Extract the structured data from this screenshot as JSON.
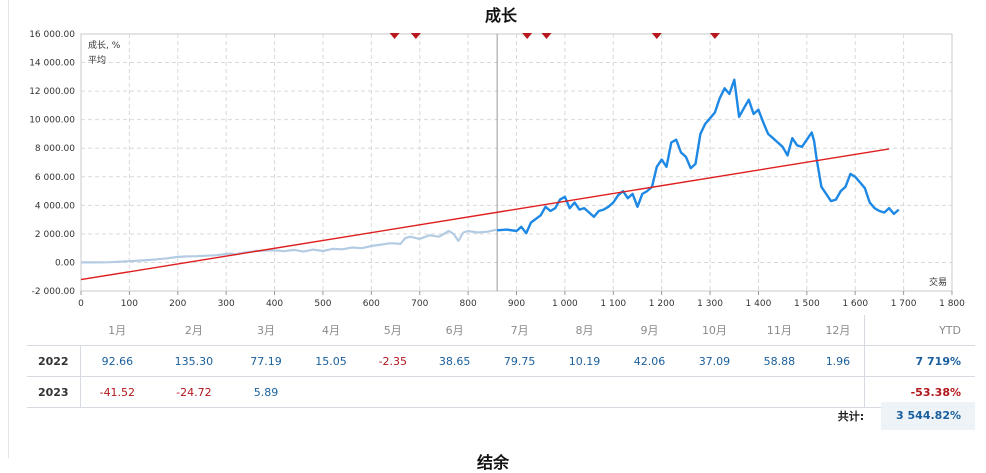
{
  "chart_data": {
    "type": "line",
    "title": "成长",
    "legend": [
      "成长, %",
      "平均"
    ],
    "legend_position": "top-left",
    "xlabel": "交易",
    "xlim": [
      0,
      1800
    ],
    "ylim": [
      -2000,
      16000
    ],
    "x_ticks": [
      0,
      100,
      200,
      300,
      400,
      500,
      600,
      700,
      800,
      900,
      1000,
      1100,
      1200,
      1300,
      1400,
      1500,
      1600,
      1700,
      1800
    ],
    "x_tick_labels": [
      "0",
      "100",
      "200",
      "300",
      "400",
      "500",
      "600",
      "700",
      "800",
      "900",
      "1 000",
      "1 100",
      "1 200",
      "1 300",
      "1 400",
      "1 500",
      "1 600",
      "1 700",
      "1 800"
    ],
    "y_ticks": [
      -2000,
      0,
      2000,
      4000,
      6000,
      8000,
      10000,
      12000,
      14000,
      16000
    ],
    "y_tick_labels": [
      "-2 000.00",
      "0.00",
      "2 000.00",
      "4 000.00",
      "6 000.00",
      "8 000.00",
      "10 000.00",
      "12 000.00",
      "14 000.00",
      "16 000.00"
    ],
    "grid": true,
    "divider_x": 860,
    "markers_x": [
      648,
      692,
      922,
      962,
      1190,
      1310
    ],
    "series": [
      {
        "name": "成长, %",
        "segments": [
          {
            "style": "light",
            "points": [
              [
                0,
                0
              ],
              [
                30,
                0
              ],
              [
                60,
                20
              ],
              [
                80,
                50
              ],
              [
                100,
                90
              ],
              [
                120,
                130
              ],
              [
                140,
                170
              ],
              [
                160,
                230
              ],
              [
                180,
                300
              ],
              [
                200,
                390
              ],
              [
                220,
                420
              ],
              [
                240,
                440
              ],
              [
                260,
                470
              ],
              [
                280,
                510
              ],
              [
                300,
                590
              ],
              [
                310,
                620
              ],
              [
                320,
                560
              ],
              [
                330,
                650
              ],
              [
                340,
                700
              ],
              [
                350,
                740
              ],
              [
                360,
                800
              ],
              [
                380,
                820
              ],
              [
                400,
                850
              ],
              [
                420,
                790
              ],
              [
                440,
                880
              ],
              [
                460,
                760
              ],
              [
                480,
                900
              ],
              [
                500,
                800
              ],
              [
                520,
                950
              ],
              [
                540,
                920
              ],
              [
                560,
                1050
              ],
              [
                580,
                1000
              ],
              [
                600,
                1150
              ],
              [
                620,
                1250
              ],
              [
                640,
                1350
              ],
              [
                660,
                1300
              ],
              [
                670,
                1700
              ],
              [
                680,
                1800
              ],
              [
                700,
                1650
              ],
              [
                720,
                1900
              ],
              [
                740,
                1800
              ],
              [
                760,
                2200
              ],
              [
                770,
                2000
              ],
              [
                780,
                1500
              ],
              [
                790,
                2100
              ],
              [
                800,
                2200
              ],
              [
                820,
                2100
              ],
              [
                840,
                2150
              ],
              [
                860,
                2300
              ]
            ]
          },
          {
            "style": "strong",
            "points": [
              [
                860,
                2250
              ],
              [
                880,
                2300
              ],
              [
                900,
                2200
              ],
              [
                910,
                2500
              ],
              [
                920,
                2050
              ],
              [
                930,
                2800
              ],
              [
                950,
                3300
              ],
              [
                960,
                3900
              ],
              [
                970,
                3600
              ],
              [
                980,
                3800
              ],
              [
                990,
                4400
              ],
              [
                1000,
                4600
              ],
              [
                1010,
                3800
              ],
              [
                1020,
                4200
              ],
              [
                1030,
                3700
              ],
              [
                1040,
                3800
              ],
              [
                1050,
                3500
              ],
              [
                1060,
                3200
              ],
              [
                1070,
                3600
              ],
              [
                1080,
                3700
              ],
              [
                1090,
                3900
              ],
              [
                1100,
                4200
              ],
              [
                1110,
                4700
              ],
              [
                1120,
                5000
              ],
              [
                1130,
                4500
              ],
              [
                1140,
                4800
              ],
              [
                1150,
                3900
              ],
              [
                1160,
                4800
              ],
              [
                1170,
                5000
              ],
              [
                1180,
                5300
              ],
              [
                1190,
                6700
              ],
              [
                1200,
                7200
              ],
              [
                1210,
                6700
              ],
              [
                1220,
                8400
              ],
              [
                1230,
                8600
              ],
              [
                1240,
                7700
              ],
              [
                1250,
                7400
              ],
              [
                1260,
                6600
              ],
              [
                1270,
                6900
              ],
              [
                1280,
                9000
              ],
              [
                1290,
                9700
              ],
              [
                1300,
                10100
              ],
              [
                1310,
                10500
              ],
              [
                1320,
                11500
              ],
              [
                1330,
                12200
              ],
              [
                1340,
                11800
              ],
              [
                1350,
                12800
              ],
              [
                1360,
                10200
              ],
              [
                1370,
                10800
              ],
              [
                1380,
                11400
              ],
              [
                1390,
                10400
              ],
              [
                1400,
                10700
              ],
              [
                1410,
                9800
              ],
              [
                1420,
                9000
              ],
              [
                1430,
                8700
              ],
              [
                1440,
                8400
              ],
              [
                1450,
                8100
              ],
              [
                1460,
                7500
              ],
              [
                1470,
                8700
              ],
              [
                1480,
                8200
              ],
              [
                1490,
                8100
              ],
              [
                1500,
                8600
              ],
              [
                1510,
                9100
              ],
              [
                1515,
                8500
              ],
              [
                1520,
                7300
              ],
              [
                1530,
                5300
              ],
              [
                1540,
                4800
              ],
              [
                1550,
                4300
              ],
              [
                1560,
                4400
              ],
              [
                1570,
                5000
              ],
              [
                1580,
                5300
              ],
              [
                1590,
                6200
              ],
              [
                1600,
                6000
              ],
              [
                1610,
                5600
              ],
              [
                1620,
                5200
              ],
              [
                1630,
                4200
              ],
              [
                1640,
                3800
              ],
              [
                1650,
                3600
              ],
              [
                1660,
                3500
              ],
              [
                1670,
                3800
              ],
              [
                1680,
                3400
              ],
              [
                1690,
                3700
              ]
            ]
          }
        ]
      },
      {
        "name": "平均",
        "points": [
          [
            0,
            -1200
          ],
          [
            1670,
            7950
          ]
        ]
      }
    ],
    "colors": {
      "light": "#b4cce3",
      "strong": "#1e88e5",
      "average": "#e01e1e",
      "marker": "#b8191e",
      "legend_growth": "#1e6fd6",
      "legend_average": "#cc2020"
    }
  },
  "table": {
    "columns": [
      "1月",
      "2月",
      "3月",
      "4月",
      "5月",
      "6月",
      "7月",
      "8月",
      "9月",
      "10月",
      "11月",
      "12月"
    ],
    "ytd_label": "YTD",
    "rows": [
      {
        "year": "2022",
        "values": [
          "92.66",
          "135.30",
          "77.19",
          "15.05",
          "-2.35",
          "38.65",
          "79.75",
          "10.19",
          "42.06",
          "37.09",
          "58.88",
          "1.96"
        ],
        "ytd": "7 719%"
      },
      {
        "year": "2023",
        "values": [
          "-41.52",
          "-24.72",
          "5.89",
          "",
          "",
          "",
          "",
          "",
          "",
          "",
          "",
          ""
        ],
        "ytd": "-53.38%"
      }
    ],
    "total_label": "共计:",
    "total_value": "3 544.82%"
  },
  "next_section_title": "结余"
}
